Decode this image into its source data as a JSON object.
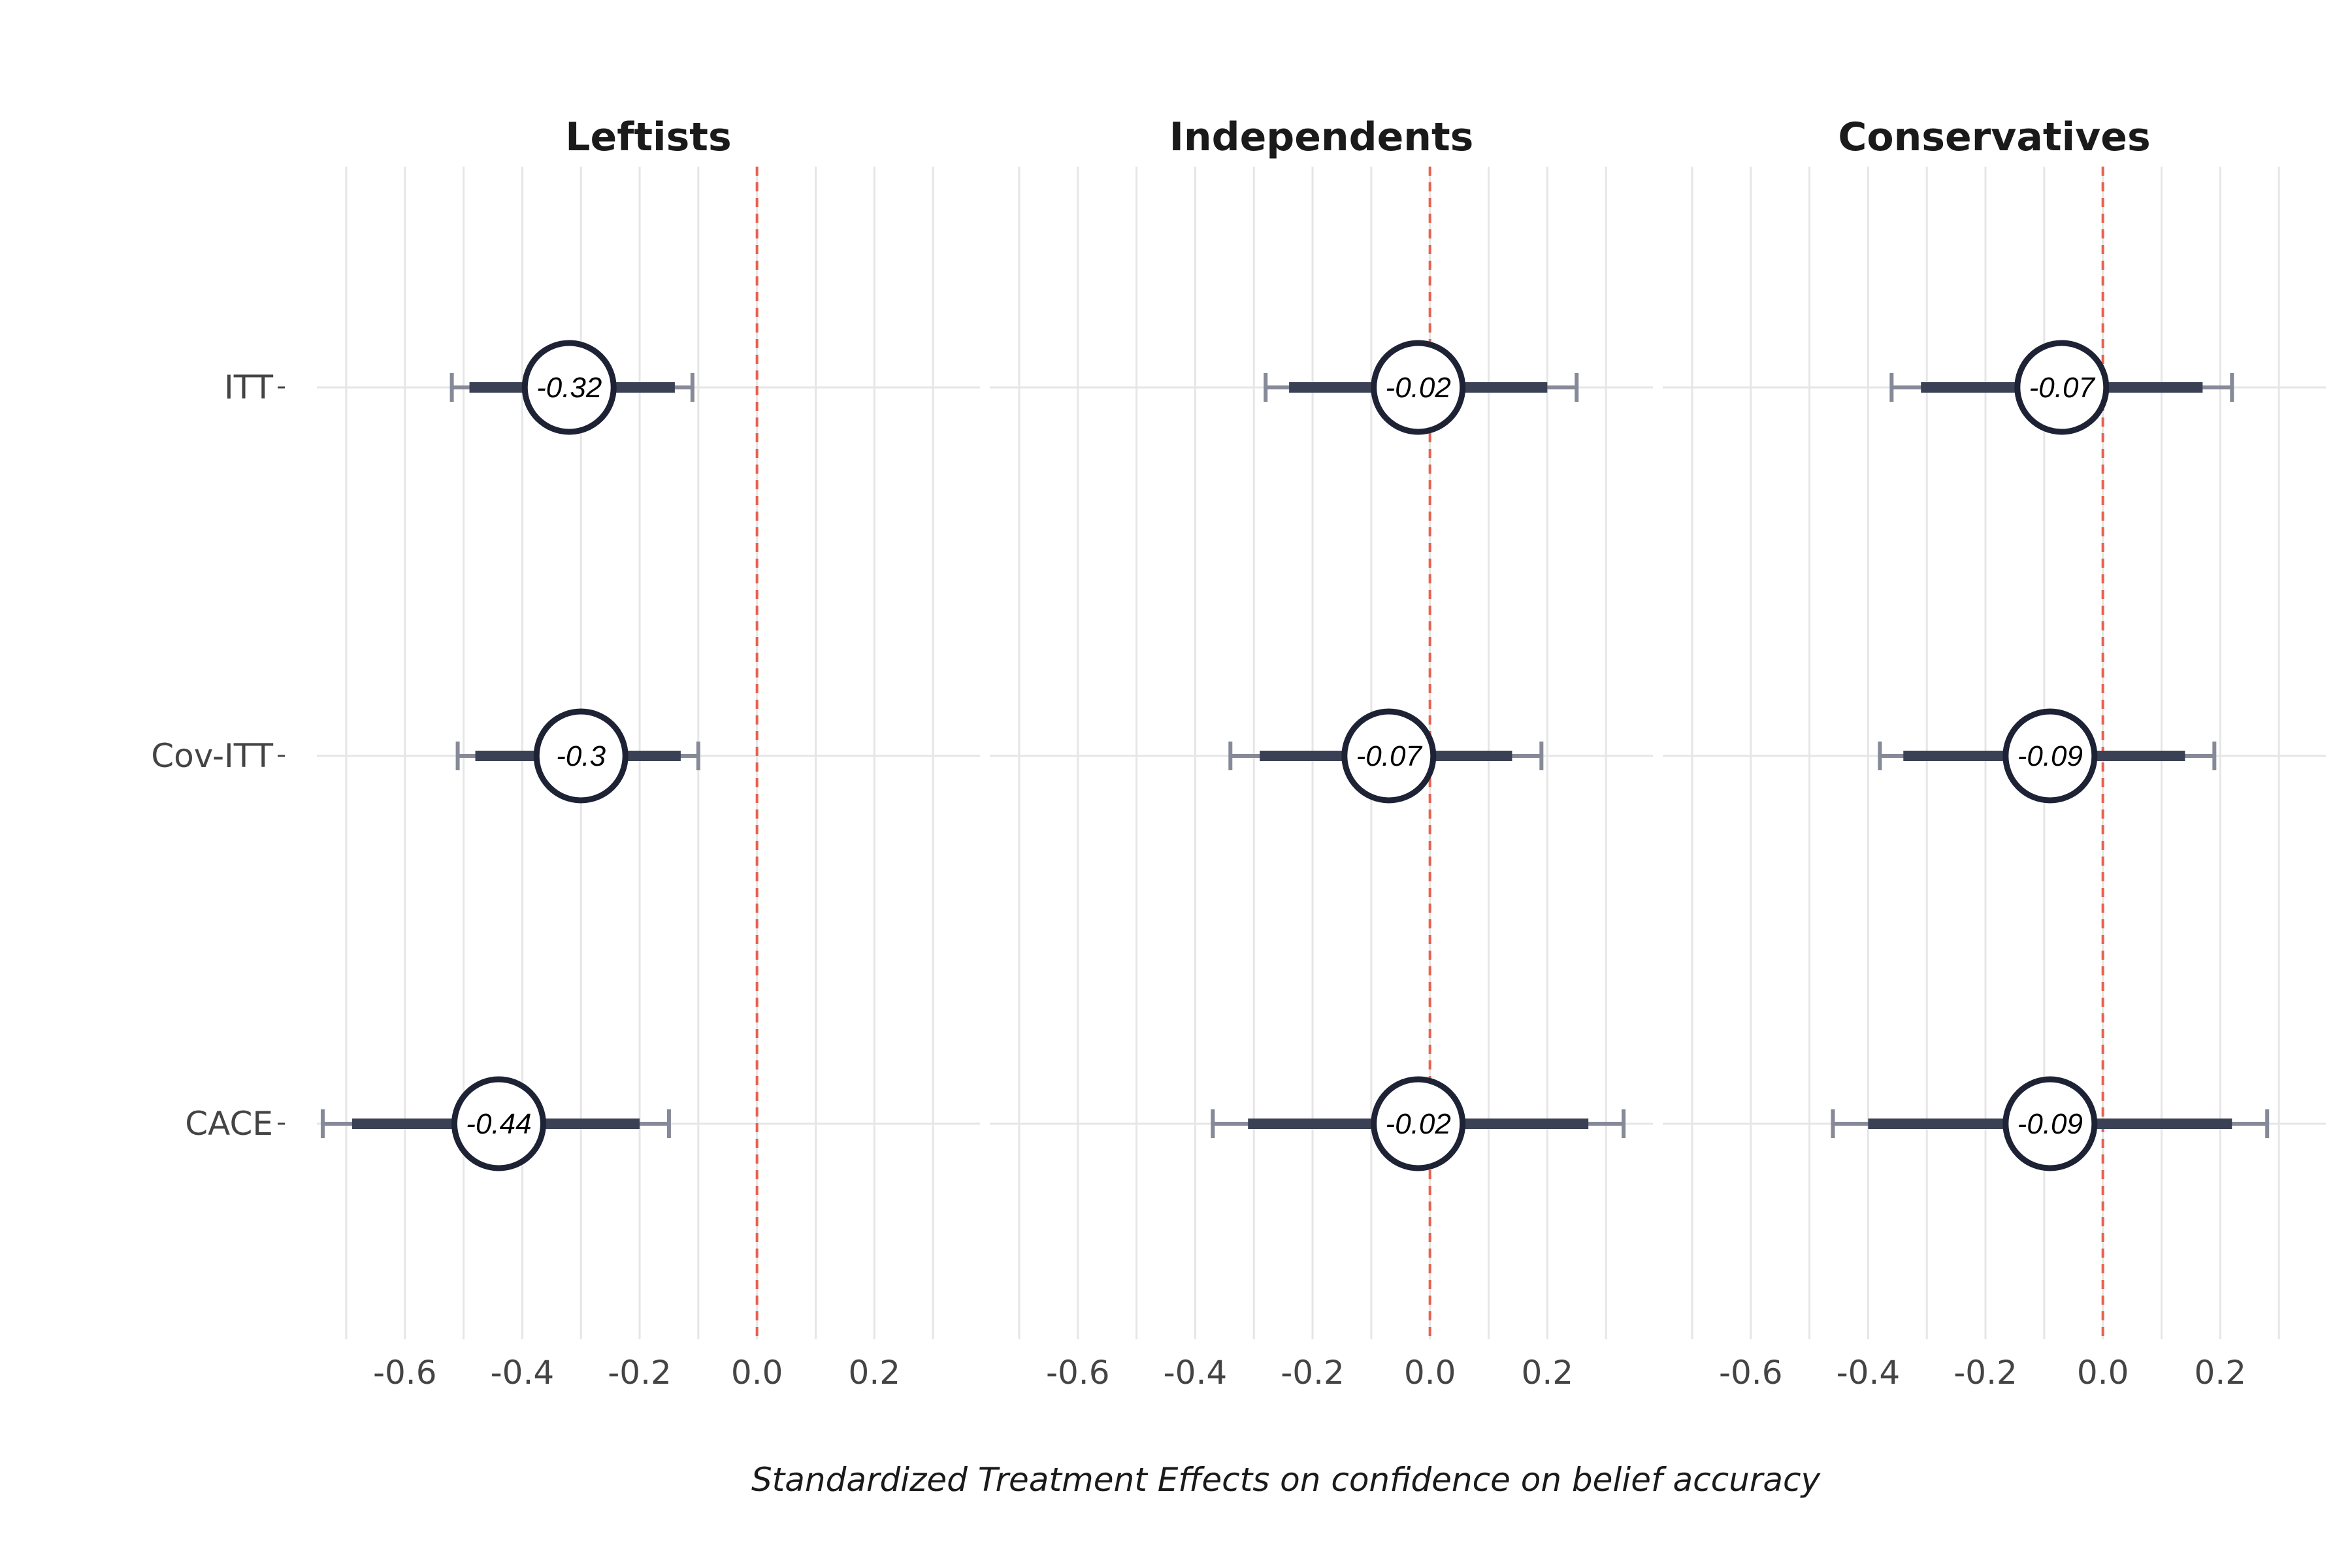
{
  "chart_data": {
    "type": "forest",
    "xlabel": "Standardized Treatment Effects on confidence on belief accuracy",
    "xlim": [
      -0.75,
      0.38
    ],
    "x_ticks": [
      -0.6,
      -0.4,
      -0.2,
      0.0,
      0.2
    ],
    "x_tick_labels": [
      "-0.6",
      "-0.4",
      "-0.2",
      "0.0",
      "0.2"
    ],
    "reference_line": 0.0,
    "reference_color": "#e8614f",
    "point_color": "#1e2235",
    "ci_color": "#3a4155",
    "outer_ci_color": "#868a98",
    "grid": true,
    "rows": [
      "ITT",
      "Cov-ITT",
      "CACE"
    ],
    "panels": [
      {
        "name": "Leftists",
        "estimates": [
          {
            "row": "ITT",
            "value": -0.32,
            "label": "-0.32",
            "ci_inner": [
              -0.49,
              -0.14
            ],
            "ci_outer": [
              -0.52,
              -0.11
            ]
          },
          {
            "row": "Cov-ITT",
            "value": -0.3,
            "label": "-0.3",
            "ci_inner": [
              -0.48,
              -0.13
            ],
            "ci_outer": [
              -0.51,
              -0.1
            ]
          },
          {
            "row": "CACE",
            "value": -0.44,
            "label": "-0.44",
            "ci_inner": [
              -0.69,
              -0.2
            ],
            "ci_outer": [
              -0.74,
              -0.15
            ]
          }
        ]
      },
      {
        "name": "Independents",
        "estimates": [
          {
            "row": "ITT",
            "value": -0.02,
            "label": "-0.02",
            "ci_inner": [
              -0.24,
              0.2
            ],
            "ci_outer": [
              -0.28,
              0.25
            ]
          },
          {
            "row": "Cov-ITT",
            "value": -0.07,
            "label": "-0.07",
            "ci_inner": [
              -0.29,
              0.14
            ],
            "ci_outer": [
              -0.34,
              0.19
            ]
          },
          {
            "row": "CACE",
            "value": -0.02,
            "label": "-0.02",
            "ci_inner": [
              -0.31,
              0.27
            ],
            "ci_outer": [
              -0.37,
              0.33
            ]
          }
        ]
      },
      {
        "name": "Conservatives",
        "estimates": [
          {
            "row": "ITT",
            "value": -0.07,
            "label": "-0.07",
            "ci_inner": [
              -0.31,
              0.17
            ],
            "ci_outer": [
              -0.36,
              0.22
            ]
          },
          {
            "row": "Cov-ITT",
            "value": -0.09,
            "label": "-0.09",
            "ci_inner": [
              -0.34,
              0.14
            ],
            "ci_outer": [
              -0.38,
              0.19
            ]
          },
          {
            "row": "CACE",
            "value": -0.09,
            "label": "-0.09",
            "ci_inner": [
              -0.4,
              0.22
            ],
            "ci_outer": [
              -0.46,
              0.28
            ]
          }
        ]
      }
    ]
  }
}
